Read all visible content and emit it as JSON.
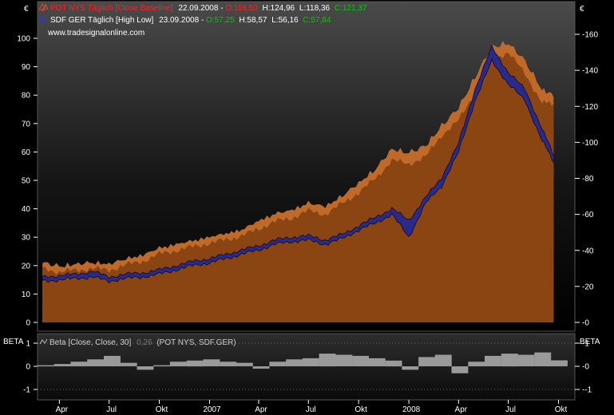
{
  "main_chart": {
    "currency_left": "€",
    "currency_right": "€",
    "yaxis_left_ticks": [
      0,
      10,
      20,
      30,
      40,
      50,
      60,
      70,
      80,
      90,
      100
    ],
    "yaxis_right_ticks": [
      0,
      20,
      40,
      60,
      80,
      100,
      120,
      140,
      160
    ],
    "legend": {
      "pot": {
        "name": "POT NYS Täglich [Close Baseline]",
        "date": "22.09.2008",
        "o_label": "O:118,50",
        "h_label": "H:124,96",
        "l_label": "L:118,36",
        "c_label": "C:121,37"
      },
      "sdf": {
        "name": "SDF GER Täglich [High Low]",
        "date": "23.09.2008",
        "o_label": "O:57,25",
        "h_label": "H:58,57",
        "l_label": "L:56,16",
        "c_label": "C:57,84"
      },
      "watermark": "www.tradesignalonline.com"
    }
  },
  "beta_panel": {
    "axis_label_left": "BETA",
    "axis_label_right": "BETA",
    "title": "Beta [Close, Close, 30]",
    "value": "0,26",
    "symbols": "(POT NYS, SDF.GER)",
    "ticks": [
      "1",
      "0",
      "-1"
    ]
  },
  "x_axis_labels": [
    "Apr",
    "Jul",
    "Okt",
    "2007",
    "Apr",
    "Jul",
    "Okt",
    "2008",
    "Apr",
    "Jul",
    "Okt"
  ],
  "colors": {
    "background": "#000000",
    "panel_top": "#4a4a4a",
    "pot_fill": "#8b4513",
    "pot_top": "#c06a2a",
    "sdf_line": "#1c1c6e",
    "beta_bar": "#9a9a9a",
    "legend_red": "#ff2020",
    "legend_green": "#00cc00"
  },
  "chart_data": [
    {
      "type": "area",
      "title": "POT NYS Täglich [Close Baseline]",
      "axis": "right",
      "ylim": [
        0,
        170
      ],
      "x": [
        "2006-03-01",
        "2006-04-01",
        "2006-05-01",
        "2006-06-01",
        "2006-07-01",
        "2006-08-01",
        "2006-09-01",
        "2006-10-01",
        "2006-11-01",
        "2006-12-01",
        "2007-01-01",
        "2007-02-01",
        "2007-03-01",
        "2007-04-01",
        "2007-05-01",
        "2007-06-01",
        "2007-07-01",
        "2007-08-01",
        "2007-09-01",
        "2007-10-01",
        "2007-11-01",
        "2007-12-01",
        "2008-01-01",
        "2008-02-01",
        "2008-03-01",
        "2008-04-01",
        "2008-05-01",
        "2008-06-01",
        "2008-07-01",
        "2008-08-01",
        "2008-09-01",
        "2008-09-22"
      ],
      "values": [
        30,
        28,
        29,
        30,
        29,
        32,
        34,
        38,
        40,
        42,
        44,
        46,
        48,
        52,
        56,
        58,
        62,
        60,
        66,
        72,
        80,
        90,
        88,
        92,
        104,
        112,
        128,
        146,
        150,
        138,
        122,
        121.37
      ],
      "high": [
        32,
        30,
        31,
        32,
        31,
        34,
        36,
        40,
        42,
        44,
        46,
        48,
        50,
        55,
        59,
        61,
        65,
        63,
        69,
        76,
        84,
        95,
        93,
        97,
        108,
        118,
        135,
        152,
        154,
        144,
        128,
        124.96
      ],
      "low": [
        28,
        26,
        27,
        28,
        27,
        30,
        32,
        36,
        38,
        40,
        42,
        44,
        46,
        50,
        53,
        55,
        58,
        56,
        62,
        68,
        76,
        84,
        82,
        86,
        98,
        106,
        120,
        138,
        142,
        130,
        116,
        118.36
      ],
      "xlabel": "",
      "ylabel": ""
    },
    {
      "type": "line",
      "title": "SDF GER Täglich [High Low]",
      "axis": "left",
      "ylim": [
        0,
        110
      ],
      "x": [
        "2006-03-01",
        "2006-04-01",
        "2006-05-01",
        "2006-06-01",
        "2006-07-01",
        "2006-08-01",
        "2006-09-01",
        "2006-10-01",
        "2006-11-01",
        "2006-12-01",
        "2007-01-01",
        "2007-02-01",
        "2007-03-01",
        "2007-04-01",
        "2007-05-01",
        "2007-06-01",
        "2007-07-01",
        "2007-08-01",
        "2007-09-01",
        "2007-10-01",
        "2007-11-01",
        "2007-12-01",
        "2008-01-01",
        "2008-02-01",
        "2008-03-01",
        "2008-04-01",
        "2008-05-01",
        "2008-06-01",
        "2008-07-01",
        "2008-08-01",
        "2008-09-01",
        "2008-09-23"
      ],
      "high": [
        16,
        16.5,
        17,
        18,
        16,
        17,
        17.5,
        18.5,
        20,
        21.5,
        22.5,
        24,
        25.5,
        27,
        29,
        30,
        30.5,
        29,
        31,
        34,
        37,
        40,
        36,
        44,
        51,
        63,
        82,
        97,
        88,
        82,
        68,
        58.57
      ],
      "low": [
        14.5,
        15,
        15.5,
        16,
        14.5,
        15.5,
        16,
        17,
        18.5,
        20,
        21,
        22.5,
        24,
        25.5,
        27.5,
        28.5,
        29,
        27.5,
        29.5,
        32.5,
        35,
        38,
        30,
        42,
        48,
        60,
        78,
        92,
        84,
        78,
        64,
        56.16
      ],
      "xlabel": "",
      "ylabel": ""
    },
    {
      "type": "bar",
      "title": "Beta [Close, Close, 30]",
      "ylim": [
        -1.2,
        1.2
      ],
      "x": [
        "2006-03",
        "2006-04",
        "2006-05",
        "2006-06",
        "2006-07",
        "2006-08",
        "2006-09",
        "2006-10",
        "2006-11",
        "2006-12",
        "2007-01",
        "2007-02",
        "2007-03",
        "2007-04",
        "2007-05",
        "2007-06",
        "2007-07",
        "2007-08",
        "2007-09",
        "2007-10",
        "2007-11",
        "2007-12",
        "2008-01",
        "2008-02",
        "2008-03",
        "2008-04",
        "2008-05",
        "2008-06",
        "2008-07",
        "2008-08",
        "2008-09",
        "2008-09-22"
      ],
      "values": [
        0.05,
        0.1,
        0.2,
        0.3,
        0.45,
        0.15,
        -0.15,
        0.05,
        0.2,
        0.25,
        0.3,
        0.2,
        0.15,
        -0.1,
        0.2,
        0.3,
        0.35,
        0.55,
        0.5,
        0.45,
        0.35,
        0.25,
        -0.15,
        0.4,
        0.5,
        -0.3,
        0.2,
        0.45,
        0.55,
        0.5,
        0.6,
        0.26
      ],
      "xlabel": "",
      "ylabel": ""
    }
  ]
}
